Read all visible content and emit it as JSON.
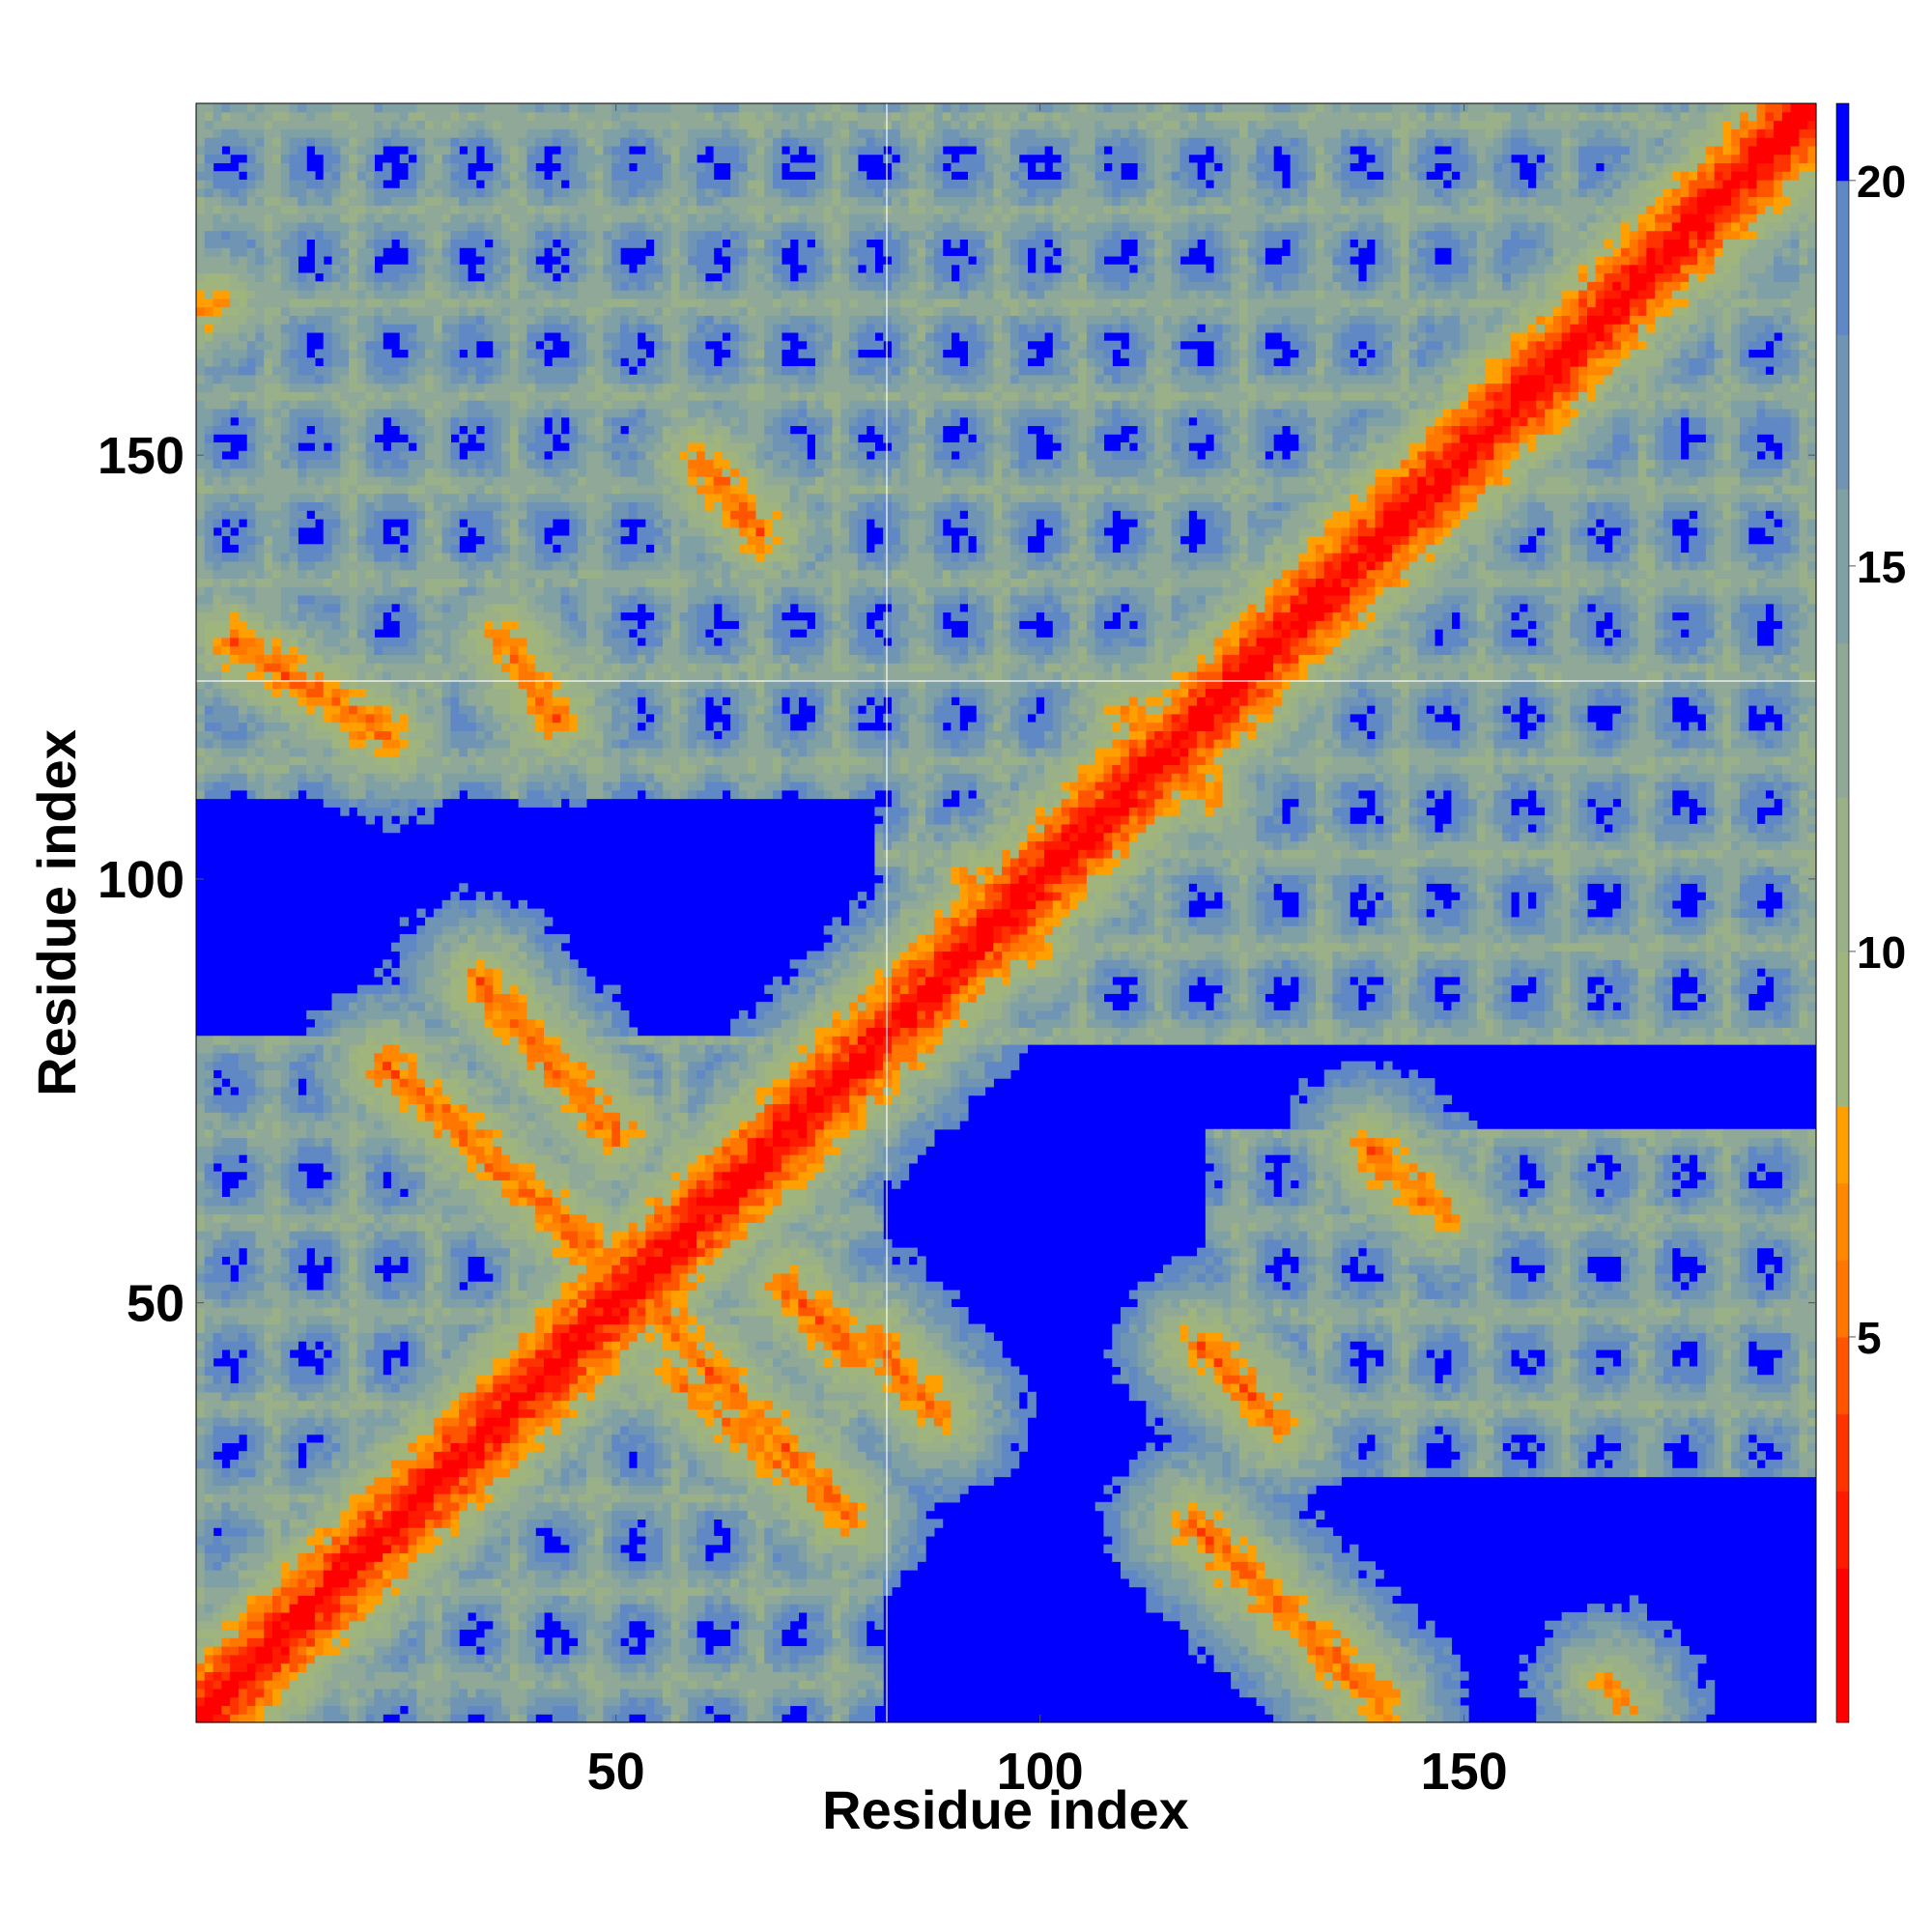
{
  "chart_data": {
    "type": "heatmap",
    "title": "",
    "xlabel": "Residue index",
    "ylabel": "Residue index",
    "xlim": [
      1,
      191
    ],
    "ylim": [
      1,
      191
    ],
    "xticks": [
      50,
      100,
      150
    ],
    "yticks": [
      50,
      100,
      150
    ],
    "colorbar": {
      "range": [
        0,
        21
      ],
      "ticks": [
        5,
        10,
        15,
        20
      ],
      "levels": [
        {
          "from": 0,
          "to": 2,
          "color": "#ff0000"
        },
        {
          "from": 2,
          "to": 3,
          "color": "#ff1a00"
        },
        {
          "from": 3,
          "to": 4,
          "color": "#ff3300"
        },
        {
          "from": 4,
          "to": 5,
          "color": "#ff5500"
        },
        {
          "from": 5,
          "to": 6,
          "color": "#ff7700"
        },
        {
          "from": 6,
          "to": 7,
          "color": "#ff8800"
        },
        {
          "from": 7,
          "to": 8,
          "color": "#ffa000"
        },
        {
          "from": 8,
          "to": 10,
          "color": "#a0b47d"
        },
        {
          "from": 10,
          "to": 12,
          "color": "#99b088"
        },
        {
          "from": 12,
          "to": 14,
          "color": "#8fa898"
        },
        {
          "from": 14,
          "to": 16,
          "color": "#7fa0a4"
        },
        {
          "from": 16,
          "to": 18,
          "color": "#6f94b4"
        },
        {
          "from": 18,
          "to": 20,
          "color": "#5f88c4"
        },
        {
          "from": 20,
          "to": 21,
          "color": "#0000ff"
        }
      ]
    },
    "cap_color": "#0000ff",
    "diagonal": "residue distance 0 along the main diagonal, rising with |i-j|",
    "contact_bands": [
      {
        "from": [
          5,
          128
        ],
        "to": [
          23,
          117
        ],
        "d": 5
      },
      {
        "from": [
          37,
          128
        ],
        "to": [
          43,
          119
        ],
        "d": 5
      },
      {
        "from": [
          60,
          149
        ],
        "to": [
          67,
          141
        ],
        "d": 5
      },
      {
        "from": [
          34,
          88
        ],
        "to": [
          50,
          70
        ],
        "d": 5
      },
      {
        "from": [
          23,
          78
        ],
        "to": [
          52,
          52
        ],
        "d": 5
      },
      {
        "from": [
          52,
          52
        ],
        "to": [
          77,
          25
        ],
        "d": 5
      },
      {
        "from": [
          56,
          42
        ],
        "to": [
          70,
          30
        ],
        "d": 6
      },
      {
        "from": [
          70,
          52
        ],
        "to": [
          78,
          44
        ],
        "d": 5
      },
      {
        "from": [
          80,
          46
        ],
        "to": [
          88,
          37
        ],
        "d": 5
      },
      {
        "from": [
          119,
          45
        ],
        "to": [
          128,
          36
        ],
        "d": 5
      },
      {
        "from": [
          118,
          24
        ],
        "to": [
          140,
          3
        ],
        "d": 5
      },
      {
        "from": [
          139,
          68
        ],
        "to": [
          147,
          61
        ],
        "d": 5
      },
      {
        "from": [
          110,
          120
        ],
        "to": [
          120,
          110
        ],
        "d": 6
      },
      {
        "from": [
          92,
          100
        ],
        "to": [
          100,
          92
        ],
        "d": 6
      },
      {
        "from": [
          167,
          5
        ],
        "to": [
          169,
          3
        ],
        "d": 6
      },
      {
        "from": [
          1,
          167
        ],
        "to": [
          3,
          168
        ],
        "d": 6
      }
    ],
    "domains": [
      {
        "x": [
          1,
          81
        ],
        "y": [
          1,
          81
        ]
      },
      {
        "x": [
          81,
          191
        ],
        "y": [
          81,
          191
        ]
      },
      {
        "x": [
          120,
          191
        ],
        "y": [
          30,
          70
        ]
      },
      {
        "x": [
          1,
          81
        ],
        "y": [
          110,
          191
        ]
      }
    ]
  }
}
